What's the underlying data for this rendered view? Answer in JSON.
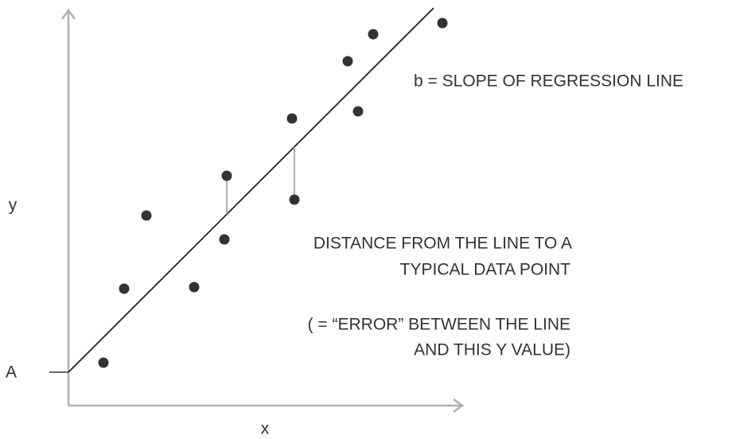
{
  "axes": {
    "y_label": "y",
    "x_label": "x",
    "intercept_label": "A"
  },
  "annotations": {
    "slope": "b = SLOPE OF REGRESSION LINE",
    "distance": [
      "DISTANCE FROM THE LINE TO A",
      "TYPICAL DATA POINT"
    ],
    "error": [
      "( = “ERROR” BETWEEN THE LINE",
      "AND THIS Y VALUE)"
    ]
  }
}
